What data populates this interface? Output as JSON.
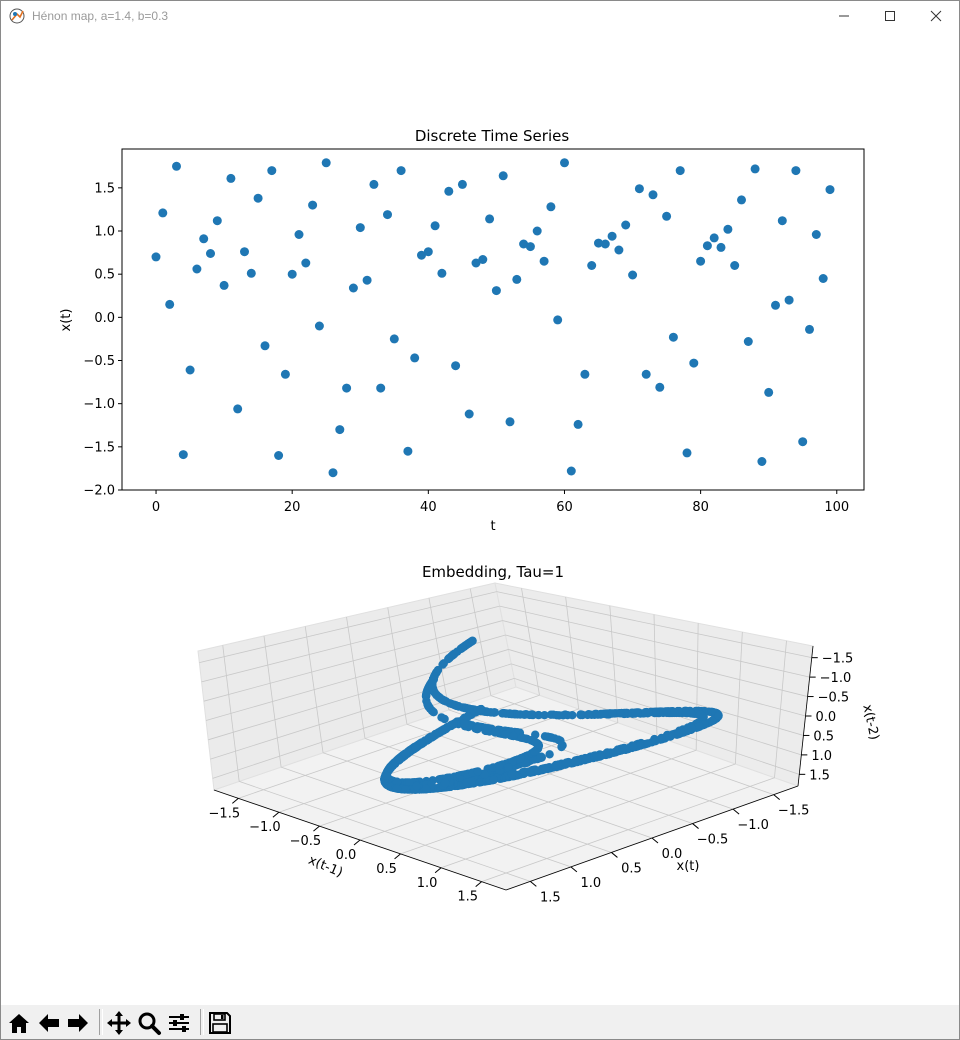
{
  "window": {
    "title": "Hénon map, a=1.4, b=0.3",
    "icons": [
      "app-icon",
      "minimize-icon",
      "maximize-icon",
      "close-icon"
    ]
  },
  "colors": {
    "accent": "#1f77b4",
    "pane": "#f2f2f2",
    "grid": "#c8c8c8"
  },
  "chart_data": [
    {
      "type": "scatter",
      "title": "Discrete Time Series",
      "xlabel": "t",
      "ylabel": "x(t)",
      "xlim": [
        -5,
        104
      ],
      "ylim": [
        -2.0,
        1.95
      ],
      "xticks": [
        0,
        20,
        40,
        60,
        80,
        100
      ],
      "yticks": [
        -2.0,
        -1.5,
        -1.0,
        -0.5,
        0.0,
        0.5,
        1.0,
        1.5
      ],
      "xtick_labels": [
        "0",
        "20",
        "40",
        "60",
        "80",
        "100"
      ],
      "ytick_labels": [
        "−2.0",
        "−1.5",
        "−1.0",
        "−0.5",
        "0.0",
        "0.5",
        "1.0",
        "1.5"
      ],
      "grid": false,
      "x": [
        0,
        1,
        2,
        3,
        4,
        5,
        6,
        7,
        8,
        9,
        10,
        11,
        12,
        13,
        14,
        15,
        16,
        17,
        18,
        19,
        20,
        21,
        22,
        23,
        24,
        25,
        26,
        27,
        28,
        29,
        30,
        31,
        32,
        33,
        34,
        35,
        36,
        37,
        38,
        39,
        40,
        41,
        42,
        43,
        44,
        45,
        46,
        47,
        48,
        49,
        50,
        51,
        52,
        53,
        54,
        55,
        56,
        57,
        58,
        59,
        60,
        61,
        62,
        63,
        64,
        65,
        66,
        67,
        68,
        69,
        70,
        71,
        72,
        73,
        74,
        75,
        76,
        77,
        78,
        79,
        80,
        81,
        82,
        83,
        84,
        85,
        86,
        87,
        88,
        89,
        90,
        91,
        92,
        93,
        94,
        95,
        96,
        97,
        98,
        99
      ],
      "y": [
        0.7,
        1.21,
        0.15,
        1.75,
        -1.59,
        -0.61,
        0.56,
        0.91,
        0.74,
        1.12,
        0.37,
        1.61,
        -1.06,
        0.76,
        0.51,
        1.38,
        -0.33,
        1.7,
        -1.6,
        -0.66,
        0.5,
        0.96,
        0.63,
        1.3,
        -0.1,
        1.79,
        -1.8,
        -1.3,
        -0.82,
        0.34,
        1.04,
        0.43,
        1.54,
        -0.82,
        1.19,
        -0.25,
        1.7,
        -1.55,
        -0.47,
        0.72,
        0.76,
        1.06,
        0.51,
        1.46,
        -0.56,
        1.54,
        -1.12,
        0.63,
        0.67,
        1.14,
        0.31,
        1.64,
        -1.21,
        0.44,
        0.85,
        0.82,
        1.0,
        0.65,
        1.28,
        -0.03,
        1.79,
        -1.78,
        -1.24,
        -0.66,
        0.6,
        0.86,
        0.85,
        0.94,
        0.78,
        1.07,
        0.49,
        1.49,
        -0.66,
        1.42,
        -0.81,
        1.17,
        -0.23,
        1.7,
        -1.57,
        -0.53,
        0.65,
        0.83,
        0.92,
        0.81,
        1.02,
        0.6,
        1.36,
        -0.28,
        1.72,
        -1.67,
        -0.87,
        0.14,
        1.12,
        0.2,
        1.7,
        -1.44,
        -0.14,
        0.96,
        0.45,
        1.48
      ]
    },
    {
      "type": "scatter",
      "title": "Embedding, Tau=1",
      "xlabel": "x(t)",
      "ylabel": "x(t-1)",
      "zlabel": "x(t-2)",
      "ticks": [
        "−1.5",
        "−1.0",
        "−0.5",
        "0.0",
        "0.5",
        "1.0",
        "1.5"
      ],
      "range": [
        -1.8,
        1.8
      ],
      "view": "3d",
      "map": {
        "a": 1.4,
        "b": 0.3
      }
    }
  ],
  "toolbar": {
    "buttons": [
      "home-icon",
      "back-icon",
      "forward-icon",
      "pan-icon",
      "zoom-icon",
      "configure-subplots-icon",
      "save-icon"
    ]
  }
}
